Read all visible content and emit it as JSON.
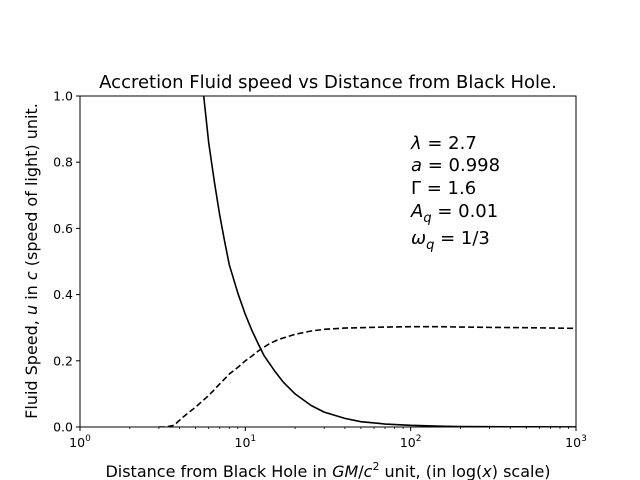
{
  "chart_data": {
    "type": "line",
    "title": "Accretion Fluid speed vs Distance from Black Hole.",
    "xlabel": {
      "pre": "Distance from Black Hole in ",
      "var": "GM",
      "mid": "/",
      "var2": "c",
      "sup": "2",
      "post": " unit, (in log(",
      "var3": "x",
      "end": ") scale)"
    },
    "ylabel": {
      "pre": "Fluid Speed, ",
      "var": "u",
      "mid": " in ",
      "var2": "c",
      "post": " (speed of light) unit."
    },
    "xscale": "log",
    "xlim": [
      1,
      1000
    ],
    "ylim": [
      0,
      1
    ],
    "xticks": [
      {
        "value": 1,
        "base": "10",
        "exp": "0"
      },
      {
        "value": 10,
        "base": "10",
        "exp": "1"
      },
      {
        "value": 100,
        "base": "10",
        "exp": "2"
      },
      {
        "value": 1000,
        "base": "10",
        "exp": "3"
      }
    ],
    "yticks": [
      {
        "value": 0.0,
        "label": "0.0"
      },
      {
        "value": 0.2,
        "label": "0.2"
      },
      {
        "value": 0.4,
        "label": "0.4"
      },
      {
        "value": 0.6,
        "label": "0.6"
      },
      {
        "value": 0.8,
        "label": "0.8"
      },
      {
        "value": 1.0,
        "label": "1.0"
      }
    ],
    "grid": false,
    "series": [
      {
        "style": "solid",
        "color": "#000000",
        "x": [
          5.6,
          6.0,
          6.5,
          7.0,
          7.5,
          8.0,
          9.0,
          10.0,
          11.0,
          12.0,
          13.0,
          15.0,
          17.0,
          20.0,
          25.0,
          30.0,
          40.0,
          50.0,
          70.0,
          100.0,
          150.0,
          200.0,
          300.0,
          500.0,
          1000.0
        ],
        "y": [
          1.0,
          0.86,
          0.74,
          0.64,
          0.56,
          0.49,
          0.405,
          0.34,
          0.29,
          0.25,
          0.215,
          0.17,
          0.135,
          0.1,
          0.065,
          0.045,
          0.026,
          0.016,
          0.009,
          0.005,
          0.0025,
          0.0015,
          0.001,
          0.0005,
          0.0002
        ]
      },
      {
        "style": "dashed",
        "color": "#000000",
        "x": [
          3.0,
          3.3,
          3.7,
          4.2,
          5.0,
          6.0,
          7.0,
          8.0,
          9.0,
          10.0,
          11.0,
          12.0,
          14.0,
          16.0,
          20.0,
          25.0,
          30.0,
          40.0,
          50.0,
          70.0,
          100.0,
          150.0,
          200.0,
          300.0,
          500.0,
          1000.0
        ],
        "y": [
          0.0,
          0.0,
          0.005,
          0.03,
          0.06,
          0.095,
          0.13,
          0.16,
          0.18,
          0.2,
          0.215,
          0.23,
          0.252,
          0.265,
          0.28,
          0.29,
          0.295,
          0.299,
          0.3,
          0.302,
          0.303,
          0.303,
          0.302,
          0.301,
          0.3,
          0.298
        ]
      }
    ],
    "annotations": [
      {
        "pre": "",
        "sym": "λ",
        "sub": "",
        "val": " = 2.7"
      },
      {
        "pre": "",
        "sym": "a",
        "sub": "",
        "val": " = 0.998"
      },
      {
        "pre": "Γ",
        "sym": "",
        "sub": "",
        "val": " = 1.6"
      },
      {
        "pre": "",
        "sym": "A",
        "sub": "q",
        "val": " = 0.01"
      },
      {
        "pre": "",
        "sym": "ω",
        "sub": "q",
        "val": " = 1/3"
      }
    ]
  }
}
